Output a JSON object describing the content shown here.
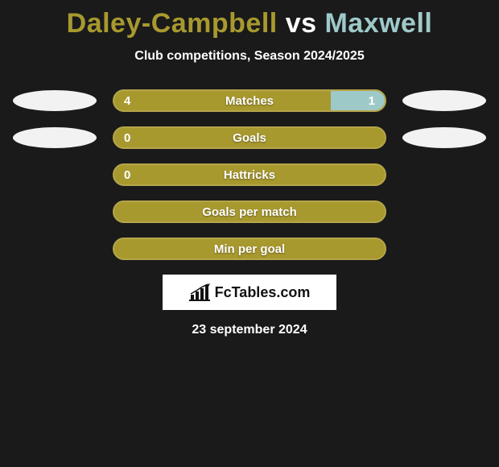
{
  "title": {
    "player1": "Daley-Campbell",
    "vs": "vs",
    "player2": "Maxwell",
    "player1_color": "#a8992f",
    "player2_color": "#9ec9c9"
  },
  "subtitle": "Club competitions, Season 2024/2025",
  "colors": {
    "bar_bg": "#a8992f",
    "bar_border": "#b5a54a",
    "p1_fill": "#a8992f",
    "p2_fill": "#9ec9c9",
    "ellipse": "#f2f2f2",
    "text": "#ffffff",
    "page_bg": "#1a1a1a"
  },
  "rows": [
    {
      "label": "Matches",
      "left_val": "4",
      "right_val": "1",
      "left_pct": 80,
      "right_pct": 20,
      "show_left_ellipse": true,
      "show_right_ellipse": true,
      "show_left_val": true,
      "show_right_val": true
    },
    {
      "label": "Goals",
      "left_val": "0",
      "right_val": "",
      "left_pct": 100,
      "right_pct": 0,
      "show_left_ellipse": true,
      "show_right_ellipse": true,
      "show_left_val": true,
      "show_right_val": false
    },
    {
      "label": "Hattricks",
      "left_val": "0",
      "right_val": "",
      "left_pct": 100,
      "right_pct": 0,
      "show_left_ellipse": false,
      "show_right_ellipse": false,
      "show_left_val": true,
      "show_right_val": false
    },
    {
      "label": "Goals per match",
      "left_val": "",
      "right_val": "",
      "left_pct": 100,
      "right_pct": 0,
      "show_left_ellipse": false,
      "show_right_ellipse": false,
      "show_left_val": false,
      "show_right_val": false
    },
    {
      "label": "Min per goal",
      "left_val": "",
      "right_val": "",
      "left_pct": 100,
      "right_pct": 0,
      "show_left_ellipse": false,
      "show_right_ellipse": false,
      "show_left_val": false,
      "show_right_val": false
    }
  ],
  "logo": {
    "text": "FcTables.com",
    "icon_color": "#111111"
  },
  "date": "23 september 2024"
}
